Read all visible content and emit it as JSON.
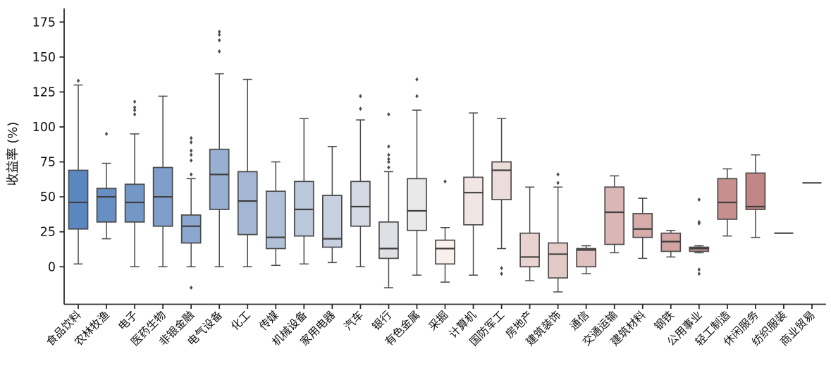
{
  "chart_data": {
    "type": "box",
    "title": "",
    "xlabel": "",
    "ylabel": "收益率 (%)",
    "y_ticks": [
      0,
      25,
      50,
      75,
      100,
      125,
      150,
      175
    ],
    "ylim": [
      -27,
      182
    ],
    "grid": false,
    "legend": "none",
    "categories": [
      "食品饮料",
      "农林牧渔",
      "电子",
      "医药生物",
      "非银金融",
      "电气设备",
      "化工",
      "传媒",
      "机械设备",
      "家用电器",
      "汽车",
      "银行",
      "有色金属",
      "采掘",
      "计算机",
      "国防军工",
      "房地产",
      "建筑装饰",
      "通信",
      "交通运输",
      "建筑材料",
      "钢铁",
      "公用事业",
      "轻工制造",
      "休闲服务",
      "纺织服装",
      "商业贸易"
    ],
    "boxes": [
      {
        "label": "食品饮料",
        "lo": 2,
        "q1": 27,
        "med": 46,
        "q3": 69,
        "hi": 130,
        "outliers": [
          133
        ],
        "color": "#5B87C0"
      },
      {
        "label": "农林牧渔",
        "lo": 20,
        "q1": 32,
        "med": 50,
        "q3": 56,
        "hi": 74,
        "outliers": [
          95
        ],
        "color": "#678FC3"
      },
      {
        "label": "电子",
        "lo": 0,
        "q1": 32,
        "med": 46,
        "q3": 59,
        "hi": 95,
        "outliers": [
          109,
          112,
          114,
          118
        ],
        "color": "#7397C7"
      },
      {
        "label": "医药生物",
        "lo": 0,
        "q1": 29,
        "med": 50,
        "q3": 71,
        "hi": 122,
        "outliers": [],
        "color": "#7F9FCA"
      },
      {
        "label": "非银金融",
        "lo": 0,
        "q1": 17,
        "med": 29,
        "q3": 37,
        "hi": 63,
        "outliers": [
          -15,
          66,
          76,
          80,
          83,
          89,
          92
        ],
        "color": "#8BA7CE"
      },
      {
        "label": "电气设备",
        "lo": 0,
        "q1": 41,
        "med": 66,
        "q3": 84,
        "hi": 138,
        "outliers": [
          154,
          162,
          166,
          168
        ],
        "color": "#97AFD1"
      },
      {
        "label": "化工",
        "lo": 0,
        "q1": 23,
        "med": 47,
        "q3": 68,
        "hi": 134,
        "outliers": [],
        "color": "#A3B7D5"
      },
      {
        "label": "传媒",
        "lo": 1,
        "q1": 13,
        "med": 21,
        "q3": 54,
        "hi": 75,
        "outliers": [],
        "color": "#AFC0D8"
      },
      {
        "label": "机械设备",
        "lo": 2,
        "q1": 22,
        "med": 41,
        "q3": 61,
        "hi": 106,
        "outliers": [],
        "color": "#BBC8DC"
      },
      {
        "label": "家用电器",
        "lo": 3,
        "q1": 14,
        "med": 20,
        "q3": 51,
        "hi": 86,
        "outliers": [],
        "color": "#C7D0DF"
      },
      {
        "label": "汽车",
        "lo": 0,
        "q1": 29,
        "med": 43,
        "q3": 61,
        "hi": 105,
        "outliers": [
          113,
          122
        ],
        "color": "#D3D8E3"
      },
      {
        "label": "银行",
        "lo": -15,
        "q1": 6,
        "med": 13,
        "q3": 32,
        "hi": 68,
        "outliers": [
          71,
          75,
          77,
          80,
          86,
          109
        ],
        "color": "#DFE0E6"
      },
      {
        "label": "有色金属",
        "lo": -6,
        "q1": 26,
        "med": 40,
        "q3": 63,
        "hi": 112,
        "outliers": [
          122,
          134
        ],
        "color": "#EBE8EA"
      },
      {
        "label": "采掘",
        "lo": -11,
        "q1": 2,
        "med": 13,
        "q3": 19,
        "hi": 28,
        "outliers": [
          61
        ],
        "color": "#F7F0ED"
      },
      {
        "label": "计算机",
        "lo": -6,
        "q1": 30,
        "med": 53,
        "q3": 64,
        "hi": 110,
        "outliers": [],
        "color": "#F2E6E4"
      },
      {
        "label": "国防军工",
        "lo": 13,
        "q1": 48,
        "med": 69,
        "q3": 75,
        "hi": 106,
        "outliers": [
          -5,
          -1
        ],
        "color": "#EDDDDA"
      },
      {
        "label": "房地产",
        "lo": -10,
        "q1": 0,
        "med": 7,
        "q3": 24,
        "hi": 57,
        "outliers": [],
        "color": "#E9D3D1"
      },
      {
        "label": "建筑装饰",
        "lo": -18,
        "q1": -8,
        "med": 9,
        "q3": 17,
        "hi": 57,
        "outliers": [
          60,
          66
        ],
        "color": "#E4CAC7"
      },
      {
        "label": "通信",
        "lo": -5,
        "q1": 0,
        "med": 12,
        "q3": 13,
        "hi": 15,
        "outliers": [],
        "color": "#DFC0BE"
      },
      {
        "label": "交通运输",
        "lo": 10,
        "q1": 16,
        "med": 39,
        "q3": 57,
        "hi": 65,
        "outliers": [],
        "color": "#DAB6B5"
      },
      {
        "label": "建筑材料",
        "lo": 6,
        "q1": 21,
        "med": 27,
        "q3": 38,
        "hi": 49,
        "outliers": [],
        "color": "#D6ADAB"
      },
      {
        "label": "钢铁",
        "lo": 7,
        "q1": 11,
        "med": 18,
        "q3": 24,
        "hi": 26,
        "outliers": [],
        "color": "#D1A3A2"
      },
      {
        "label": "公用事业",
        "lo": 10,
        "q1": 11,
        "med": 13,
        "q3": 14,
        "hi": 15,
        "outliers": [
          -5,
          -2,
          31,
          32,
          48
        ],
        "color": "#CC9999"
      },
      {
        "label": "轻工制造",
        "lo": 22,
        "q1": 34,
        "med": 46,
        "q3": 63,
        "hi": 70,
        "outliers": [],
        "color": "#C7908F"
      },
      {
        "label": "休闲服务",
        "lo": 21,
        "q1": 41,
        "med": 43,
        "q3": 67,
        "hi": 80,
        "outliers": [],
        "color": "#C38686"
      },
      {
        "label": "纺织服装",
        "lo": 24,
        "q1": 24,
        "med": 24,
        "q3": 24,
        "hi": 24,
        "outliers": [],
        "color": "#BE7D7C"
      },
      {
        "label": "商业贸易",
        "lo": 60,
        "q1": 60,
        "med": 60,
        "q3": 60,
        "hi": 60,
        "outliers": [],
        "color": "#B97373"
      }
    ],
    "style": {
      "box_border_color": "#4A4A4A",
      "median_color": "#3F3F3F",
      "whisker_color": "#4A4A4A",
      "outlier_color": "#4A4A4A",
      "axis_color": "#2B2B2B",
      "background": "#FFFFFF"
    }
  }
}
